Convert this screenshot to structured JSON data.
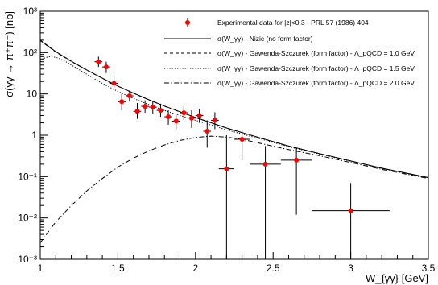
{
  "chart_data": {
    "type": "scatter",
    "title": "",
    "xlabel": "W_{γγ} [GeV]",
    "ylabel": "σ(γγ → π⁺π⁻) [nb]",
    "xlim": [
      1.0,
      3.5
    ],
    "ylim": [
      0.001,
      1000
    ],
    "yscale": "log",
    "grid": false,
    "legend_position": "top-right",
    "x_ticks": [
      1.0,
      1.5,
      2.0,
      2.5,
      3.0,
      3.5
    ],
    "x_tick_labels": [
      "1",
      "1.5",
      "2",
      "2.5",
      "3",
      "3.5"
    ],
    "y_ticks": [
      0.001,
      0.01,
      0.1,
      1,
      10,
      100,
      1000
    ],
    "y_tick_labels": [
      "10⁻³",
      "10⁻²",
      "10⁻¹",
      "1",
      "10",
      "10²",
      "10³"
    ],
    "legend": [
      {
        "label": "Experimental data for |z|<0.3 - PRL 57 (1986) 404",
        "style": "marker"
      },
      {
        "label": "σ(W_γγ) - Nizic (no form factor)",
        "style": "solid"
      },
      {
        "label": "σ(W_γγ) - Gawenda-Szczurek (form factor) - Λ_pQCD = 1.0 GeV",
        "style": "dashed"
      },
      {
        "label": "σ(W_γγ) - Gawenda-Szczurek (form factor) - Λ_pQCD = 1.5 GeV",
        "style": "dotted"
      },
      {
        "label": "σ(W_γγ) - Gawenda-Szczurek (form factor) - Λ_pQCD = 2.0 GeV",
        "style": "dashdot"
      }
    ],
    "data_points": [
      {
        "x": 1.375,
        "y": 60,
        "xerr": 0.025,
        "ylo": 45,
        "yhi": 80
      },
      {
        "x": 1.425,
        "y": 45,
        "xerr": 0.025,
        "ylo": 32,
        "yhi": 60
      },
      {
        "x": 1.475,
        "y": 18,
        "xerr": 0.025,
        "ylo": 12,
        "yhi": 26
      },
      {
        "x": 1.525,
        "y": 6.5,
        "xerr": 0.025,
        "ylo": 4.0,
        "yhi": 10
      },
      {
        "x": 1.575,
        "y": 9.0,
        "xerr": 0.025,
        "ylo": 6.5,
        "yhi": 12
      },
      {
        "x": 1.625,
        "y": 3.8,
        "xerr": 0.025,
        "ylo": 2.5,
        "yhi": 6.0
      },
      {
        "x": 1.675,
        "y": 5.0,
        "xerr": 0.025,
        "ylo": 3.5,
        "yhi": 7.0
      },
      {
        "x": 1.725,
        "y": 4.8,
        "xerr": 0.025,
        "ylo": 3.3,
        "yhi": 6.8
      },
      {
        "x": 1.775,
        "y": 4.0,
        "xerr": 0.025,
        "ylo": 2.8,
        "yhi": 5.8
      },
      {
        "x": 1.825,
        "y": 2.8,
        "xerr": 0.025,
        "ylo": 1.8,
        "yhi": 4.0
      },
      {
        "x": 1.875,
        "y": 2.2,
        "xerr": 0.025,
        "ylo": 1.4,
        "yhi": 3.3
      },
      {
        "x": 1.925,
        "y": 3.5,
        "xerr": 0.025,
        "ylo": 2.3,
        "yhi": 5.0
      },
      {
        "x": 1.975,
        "y": 2.6,
        "xerr": 0.025,
        "ylo": 1.5,
        "yhi": 4.0
      },
      {
        "x": 2.025,
        "y": 3.0,
        "xerr": 0.025,
        "ylo": 2.0,
        "yhi": 4.3
      },
      {
        "x": 2.075,
        "y": 1.25,
        "xerr": 0.025,
        "ylo": 0.5,
        "yhi": 2.3
      },
      {
        "x": 2.125,
        "y": 2.3,
        "xerr": 0.025,
        "ylo": 1.4,
        "yhi": 3.6
      },
      {
        "x": 2.2,
        "y": 0.155,
        "xerr": 0.05,
        "ylo": 0.001,
        "yhi": 1.0
      },
      {
        "x": 2.3,
        "y": 0.8,
        "xerr": 0.05,
        "ylo": 0.25,
        "yhi": 1.3
      },
      {
        "x": 2.45,
        "y": 0.2,
        "xerr": 0.1,
        "ylo": 0.001,
        "yhi": 0.55
      },
      {
        "x": 2.65,
        "y": 0.25,
        "xerr": 0.1,
        "ylo": 0.012,
        "yhi": 0.5
      },
      {
        "x": 3.0,
        "y": 0.015,
        "xerr": 0.25,
        "ylo": 0.001,
        "yhi": 0.07
      }
    ],
    "series": [
      {
        "style": "solid",
        "legend_index": 1,
        "x": [
          1.0,
          1.1,
          1.2,
          1.3,
          1.4,
          1.5,
          1.6,
          1.7,
          1.8,
          1.9,
          2.0,
          2.2,
          2.4,
          2.6,
          2.8,
          3.0,
          3.2,
          3.5
        ],
        "y": [
          200,
          105,
          62,
          38,
          24,
          15.5,
          10.5,
          7.2,
          5.1,
          3.7,
          2.7,
          1.5,
          0.9,
          0.55,
          0.36,
          0.24,
          0.16,
          0.095
        ]
      },
      {
        "style": "dashed",
        "legend_index": 2,
        "x": [
          1.0,
          1.1,
          1.2,
          1.3,
          1.4,
          1.5,
          1.6,
          1.7,
          1.8,
          1.9,
          2.0,
          2.2,
          2.4,
          2.6,
          2.8,
          3.0,
          3.2,
          3.5
        ],
        "y": [
          195,
          103,
          61,
          37.5,
          23.8,
          15.4,
          10.4,
          7.15,
          5.05,
          3.68,
          2.68,
          1.49,
          0.895,
          0.548,
          0.358,
          0.239,
          0.159,
          0.094
        ]
      },
      {
        "style": "dotted",
        "legend_index": 3,
        "x": [
          1.0,
          1.03,
          1.06,
          1.1,
          1.15,
          1.2,
          1.3,
          1.4,
          1.5,
          1.6,
          1.7,
          1.8,
          1.9,
          2.0,
          2.2,
          2.4,
          2.6,
          2.8,
          3.0,
          3.2,
          3.5
        ],
        "y": [
          60,
          75,
          80,
          77,
          65,
          50,
          30,
          18,
          11.5,
          7.8,
          5.5,
          4.0,
          3.0,
          2.3,
          1.35,
          0.85,
          0.53,
          0.35,
          0.235,
          0.158,
          0.094
        ]
      },
      {
        "style": "dashdot",
        "legend_index": 4,
        "x": [
          1.0,
          1.05,
          1.1,
          1.2,
          1.3,
          1.4,
          1.5,
          1.6,
          1.7,
          1.8,
          1.9,
          2.0,
          2.1,
          2.2,
          2.3,
          2.4,
          2.6,
          2.8,
          3.0,
          3.2,
          3.5
        ],
        "y": [
          0.0025,
          0.0045,
          0.008,
          0.02,
          0.045,
          0.09,
          0.17,
          0.28,
          0.42,
          0.58,
          0.75,
          0.88,
          0.95,
          0.9,
          0.8,
          0.66,
          0.45,
          0.32,
          0.22,
          0.15,
          0.09
        ]
      }
    ],
    "colors": {
      "marker": "#ff0000",
      "line": "#000000",
      "axis": "#000000"
    }
  }
}
